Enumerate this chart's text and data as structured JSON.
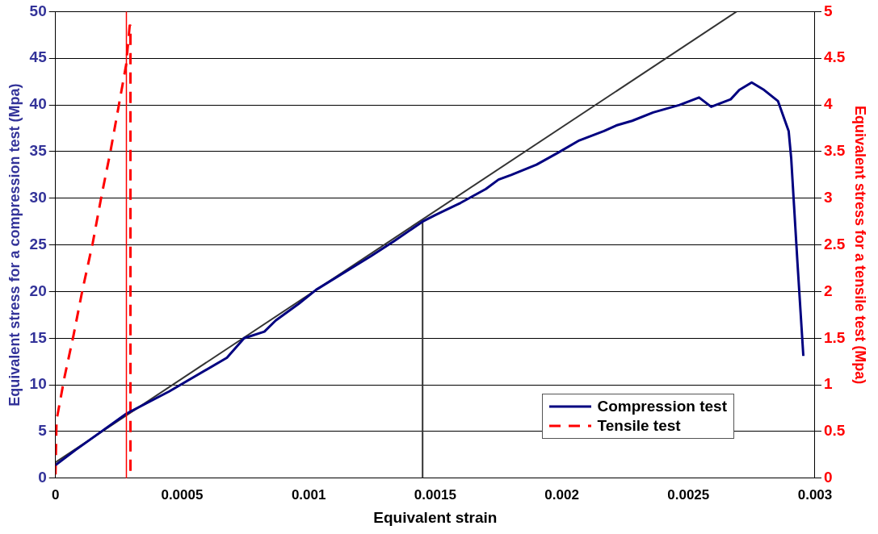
{
  "chart_data": {
    "type": "line",
    "xlabel": "Equivalent strain",
    "ylabel": "Equivalent stress for a compression test (Mpa)",
    "y2label": "Equivalent stress for a tensile test (Mpa)",
    "xlim": [
      0,
      0.003
    ],
    "xticks": [
      0,
      0.0005,
      0.001,
      0.0015,
      0.002,
      0.0025,
      0.003
    ],
    "ylim": [
      0,
      50
    ],
    "yticks": [
      0,
      5,
      10,
      15,
      20,
      25,
      30,
      35,
      40,
      45,
      50
    ],
    "y2lim": [
      0,
      5
    ],
    "y2ticks": [
      0,
      0.5,
      1,
      1.5,
      2,
      2.5,
      3,
      3.5,
      4,
      4.5,
      5
    ],
    "grid": "y",
    "legend": "bottom right",
    "marker": "none",
    "ref_lines": [
      {
        "axis": "x",
        "value": 0.00028,
        "color": "#ff0000"
      }
    ],
    "series": [
      {
        "name": "Compression test",
        "color": "#000080",
        "line_style": "solid",
        "x": [
          0,
          7.8e-05,
          0.000279,
          0.000449,
          0.000677,
          0.000745,
          0.000825,
          0.00087,
          0.000961,
          0.00103,
          0.001132,
          0.001246,
          0.001337,
          0.00145,
          0.0015,
          0.0016,
          0.0017,
          0.00175,
          0.0018,
          0.0019,
          0.001986,
          0.002069,
          0.002167,
          0.002215,
          0.002278,
          0.002361,
          0.002465,
          0.002542,
          0.00259,
          0.002667,
          0.002701,
          0.00275,
          0.002799,
          0.002854,
          0.002896,
          0.002906,
          0.002931,
          0.002954
        ],
        "values": [
          1.4,
          3,
          6.9,
          9.3,
          12.9,
          15,
          15.7,
          16.9,
          18.7,
          20.2,
          21.9,
          23.8,
          25.4,
          27.5,
          28.2,
          29.5,
          31,
          32,
          32.5,
          33.6,
          34.9,
          36.2,
          37.2,
          37.8,
          38.3,
          39.2,
          40,
          40.8,
          39.8,
          40.6,
          41.6,
          42.4,
          41.6,
          40.4,
          37.2,
          34.3,
          23,
          13.1
        ]
      },
      {
        "name": "Tensile test",
        "color": "#ff0000",
        "line_style": "dashed",
        "axis": "y2",
        "x": [
          0,
          4e-06,
          3.6e-05,
          7.1e-05,
          0.000106,
          0.000147,
          0.000182,
          0.000217,
          0.000251,
          0.000279,
          0.000293,
          0.000296,
          0.000296
        ],
        "values": [
          0.04,
          0.62,
          1.09,
          1.53,
          2.01,
          2.52,
          3.03,
          3.5,
          4.01,
          4.43,
          4.85,
          4.85,
          0
        ]
      },
      {
        "color": "#333333",
        "line_style": "solid",
        "x": [
          0,
          0.00269
        ],
        "values": [
          1.7,
          50
        ]
      },
      {
        "color": "#333333",
        "line_style": "solid",
        "x": [
          0.00145,
          0.00145
        ],
        "values": [
          0,
          27.5
        ]
      }
    ]
  }
}
